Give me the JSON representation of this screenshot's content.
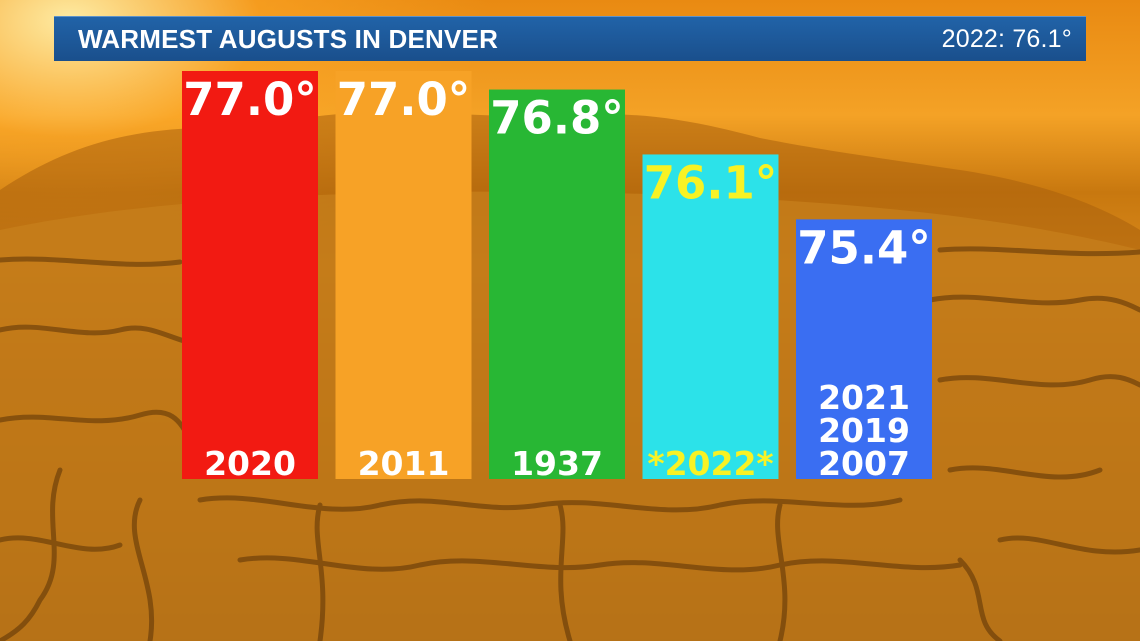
{
  "header": {
    "title": "WARMEST AUGUSTS IN DENVER",
    "current": "2022: 76.1°"
  },
  "chart_data": {
    "type": "bar",
    "title": "WARMEST AUGUSTS IN DENVER",
    "categories": [
      "2020",
      "2011",
      "1937",
      "*2022*",
      "2021\n2019\n2007"
    ],
    "values": [
      77.0,
      77.0,
      76.8,
      76.1,
      75.4
    ],
    "value_labels": [
      "77.0°",
      "77.0°",
      "76.8°",
      "76.1°",
      "75.4°"
    ],
    "category_labels": [
      [
        "2020"
      ],
      [
        "2011"
      ],
      [
        "1937"
      ],
      [
        "*2022*"
      ],
      [
        "2021",
        "2019",
        "2007"
      ]
    ],
    "bar_colors": [
      "#f21a12",
      "#f7a226",
      "#28b734",
      "#2ce2e9",
      "#3a6ef2"
    ],
    "label_colors": [
      "#ffffff",
      "#ffffff",
      "#ffffff",
      "#f8f224",
      "#ffffff"
    ],
    "ylim": [
      72.6,
      77.0
    ],
    "grid": false,
    "legend": "none",
    "xlabel": "",
    "ylabel": ""
  }
}
